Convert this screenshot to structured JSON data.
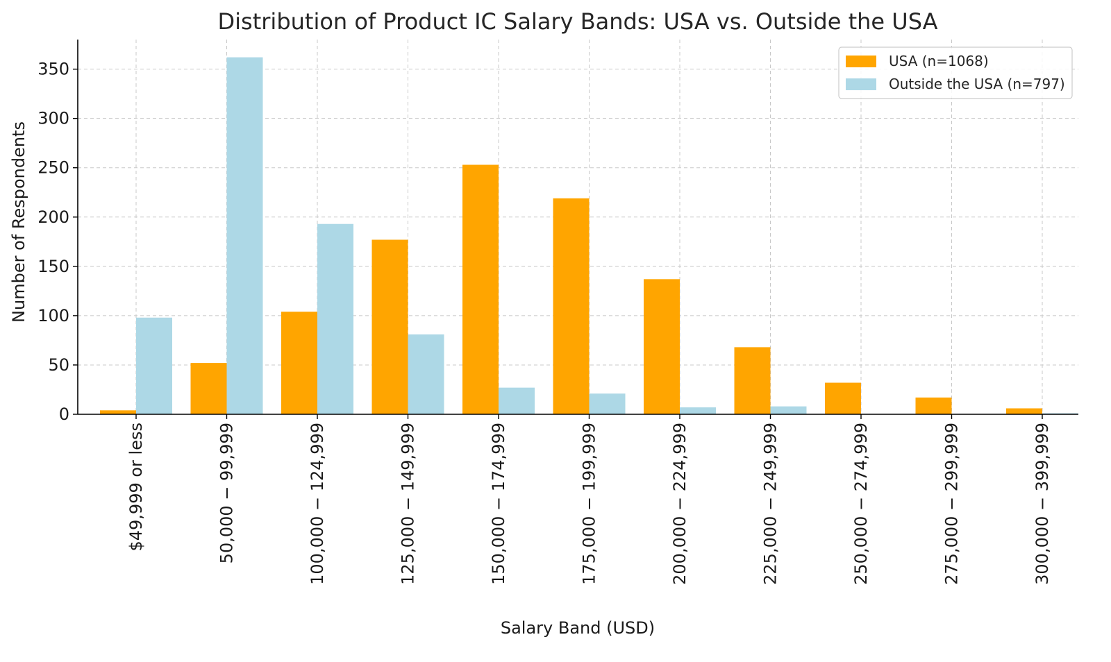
{
  "chart_data": {
    "type": "bar",
    "title": "Distribution of Product IC Salary Bands: USA vs. Outside the USA",
    "xlabel": "Salary Band (USD)",
    "ylabel": "Number of Respondents",
    "ylim": [
      0,
      380
    ],
    "yticks": [
      0,
      50,
      100,
      150,
      200,
      250,
      300,
      350
    ],
    "grid": true,
    "legend_position": "top-right",
    "categories": [
      "$49,999 or less",
      "50,000 − 99,999",
      "100,000 − 124,999",
      "125,000 − 149,999",
      "150,000 − 174,999",
      "175,000 − 199,999",
      "200,000 − 224,999",
      "225,000 − 249,999",
      "250,000 − 274,999",
      "275,000 − 299,999",
      "300,000 − 399,999"
    ],
    "series": [
      {
        "name": "USA (n=1068)",
        "color": "#FFA500",
        "values": [
          4,
          52,
          104,
          177,
          253,
          219,
          137,
          68,
          32,
          17,
          6
        ]
      },
      {
        "name": "Outside the USA (n=797)",
        "color": "#ADD8E6",
        "values": [
          98,
          362,
          193,
          81,
          27,
          21,
          7,
          8,
          0,
          0,
          1
        ]
      }
    ]
  }
}
